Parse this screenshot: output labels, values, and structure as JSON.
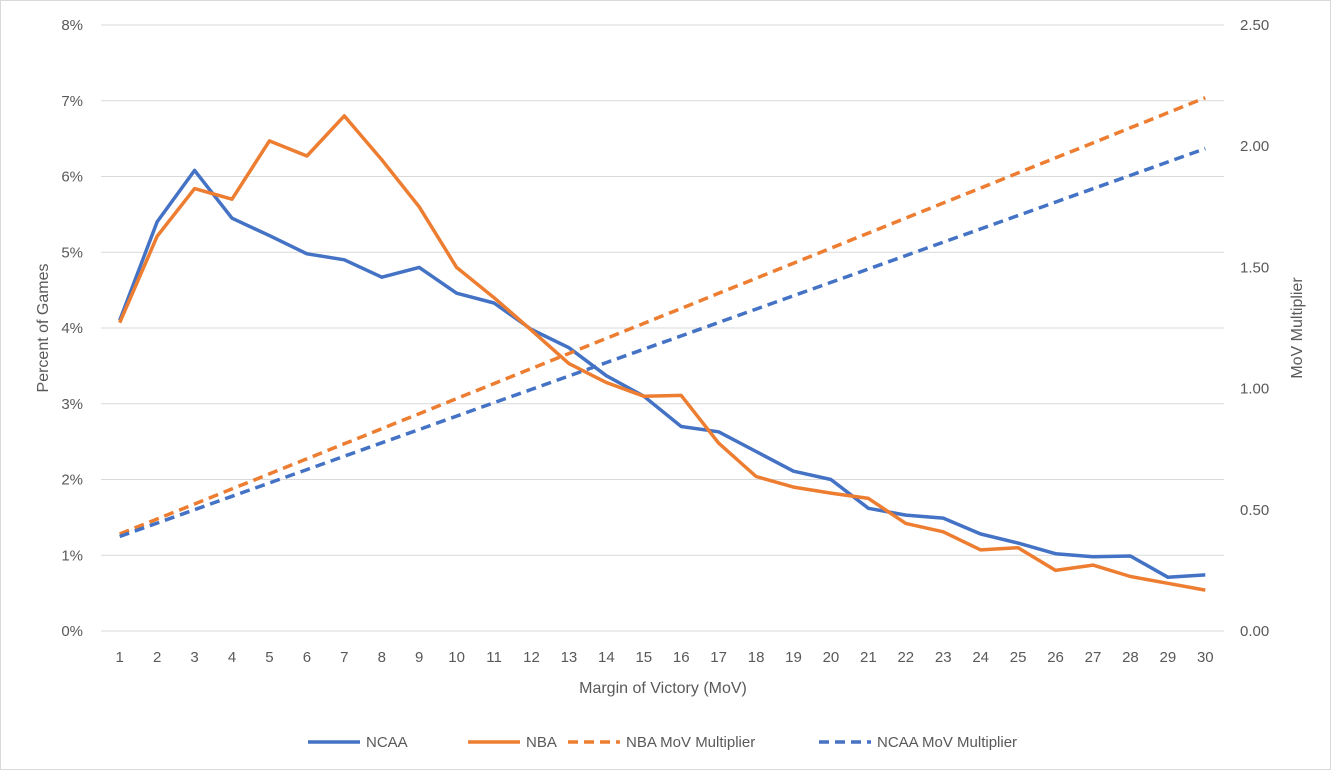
{
  "chart_data": {
    "type": "line",
    "title": "",
    "xlabel": "Margin of Victory (MoV)",
    "ylabel": "Percent of Games",
    "y2label": "MoV Multiplier",
    "x": [
      1,
      2,
      3,
      4,
      5,
      6,
      7,
      8,
      9,
      10,
      11,
      12,
      13,
      14,
      15,
      16,
      17,
      18,
      19,
      20,
      21,
      22,
      23,
      24,
      25,
      26,
      27,
      28,
      29,
      30
    ],
    "xticks": [
      "1",
      "2",
      "3",
      "4",
      "5",
      "6",
      "7",
      "8",
      "9",
      "10",
      "11",
      "12",
      "13",
      "14",
      "15",
      "16",
      "17",
      "18",
      "19",
      "20",
      "21",
      "22",
      "23",
      "24",
      "25",
      "26",
      "27",
      "28",
      "29",
      "30"
    ],
    "ylim": [
      0,
      8
    ],
    "yticks": [
      "0%",
      "1%",
      "2%",
      "3%",
      "4%",
      "5%",
      "6%",
      "7%",
      "8%"
    ],
    "y2lim": [
      0,
      2.5
    ],
    "y2ticks": [
      "0.00",
      "0.50",
      "1.00",
      "1.50",
      "2.00",
      "2.50"
    ],
    "grid": true,
    "legend_position": "bottom",
    "series": [
      {
        "name": "NCAA",
        "axis": "left",
        "style": "solid",
        "color": "#4472C4",
        "values": [
          4.1,
          5.4,
          6.08,
          5.45,
          5.22,
          4.98,
          4.9,
          4.67,
          4.8,
          4.46,
          4.33,
          3.98,
          3.74,
          3.37,
          3.1,
          2.7,
          2.63,
          2.37,
          2.11,
          2.0,
          1.62,
          1.53,
          1.49,
          1.28,
          1.16,
          1.02,
          0.98,
          0.99,
          0.71,
          0.74
        ]
      },
      {
        "name": "NBA",
        "axis": "left",
        "style": "solid",
        "color": "#ED7D31",
        "values": [
          4.07,
          5.21,
          5.84,
          5.7,
          6.47,
          6.27,
          6.8,
          6.22,
          5.6,
          4.8,
          4.4,
          3.97,
          3.53,
          3.28,
          3.1,
          3.11,
          2.48,
          2.04,
          1.9,
          1.82,
          1.75,
          1.42,
          1.31,
          1.07,
          1.1,
          0.8,
          0.87,
          0.72,
          0.63,
          0.54
        ]
      },
      {
        "name": "NBA MoV Multiplier",
        "axis": "right",
        "style": "dashed",
        "color": "#ED7D31",
        "values": [
          0.4,
          0.4621,
          0.5241,
          0.5862,
          0.6483,
          0.7103,
          0.7724,
          0.8345,
          0.8966,
          0.9586,
          1.0207,
          1.0828,
          1.1448,
          1.2069,
          1.269,
          1.331,
          1.3931,
          1.4552,
          1.5172,
          1.5793,
          1.6414,
          1.7034,
          1.7655,
          1.8276,
          1.8897,
          1.9517,
          2.0138,
          2.0759,
          2.1379,
          2.2
        ]
      },
      {
        "name": "NCAA MoV Multiplier",
        "axis": "right",
        "style": "dashed",
        "color": "#4472C4",
        "values": [
          0.39,
          0.4452,
          0.5003,
          0.5555,
          0.6107,
          0.6659,
          0.721,
          0.7762,
          0.8314,
          0.8866,
          0.9417,
          0.9969,
          1.0521,
          1.1072,
          1.1624,
          1.2176,
          1.2728,
          1.3279,
          1.3831,
          1.4383,
          1.4934,
          1.5486,
          1.6038,
          1.659,
          1.7141,
          1.7693,
          1.8245,
          1.8797,
          1.9348,
          1.99
        ]
      }
    ]
  }
}
